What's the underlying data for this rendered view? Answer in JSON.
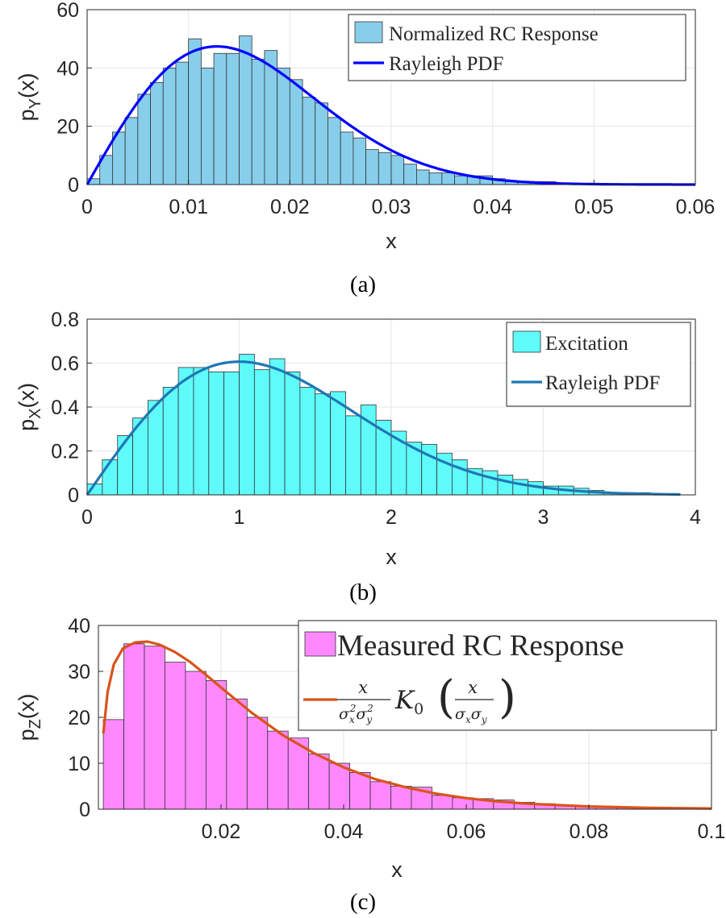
{
  "chart_data": [
    {
      "type": "bar",
      "panel": "a",
      "caption": "(a)",
      "xlabel": "x",
      "ylabel": "p",
      "ylabel_sub": "Y",
      "ylabel_tail": "(x)",
      "xlim": [
        0,
        0.06
      ],
      "ylim": [
        0,
        60
      ],
      "xticks": [
        0,
        0.01,
        0.02,
        0.03,
        0.04,
        0.05,
        0.06
      ],
      "xtick_labels": [
        "0",
        "0.01",
        "0.02",
        "0.03",
        "0.04",
        "0.05",
        "0.06"
      ],
      "yticks": [
        0,
        20,
        40,
        60
      ],
      "ytick_labels": [
        "0",
        "20",
        "40",
        "60"
      ],
      "grid": true,
      "legend_position": "top-right",
      "hist_color": "#87ceeb",
      "line_color": "#0000ff",
      "bin_edges_start": 0,
      "bin_width": 0.00125,
      "bin_values": [
        2,
        10,
        18,
        23,
        31,
        35,
        40,
        42,
        50,
        40,
        45,
        45,
        51,
        43,
        46,
        40,
        36,
        30,
        28,
        23,
        18,
        16,
        12,
        11,
        10,
        7,
        5,
        4,
        4,
        3,
        3,
        3,
        2,
        1,
        1,
        1,
        1,
        0.5
      ],
      "curve": {
        "name": "Rayleigh PDF",
        "kind": "rayleigh",
        "sigma": 0.0128,
        "x_range": [
          0,
          0.06
        ]
      },
      "legend": [
        {
          "label": "Normalized RC Response",
          "type": "patch"
        },
        {
          "label": "Rayleigh PDF",
          "type": "line"
        }
      ]
    },
    {
      "type": "bar",
      "panel": "b",
      "caption": "(b)",
      "xlabel": "x",
      "ylabel": "p",
      "ylabel_sub": "X",
      "ylabel_tail": "(x)",
      "xlim": [
        0,
        4
      ],
      "ylim": [
        0,
        0.8
      ],
      "xticks": [
        0,
        1,
        2,
        3,
        4
      ],
      "xtick_labels": [
        "0",
        "1",
        "2",
        "3",
        "4"
      ],
      "yticks": [
        0,
        0.2,
        0.4,
        0.6,
        0.8
      ],
      "ytick_labels": [
        "0",
        "0.2",
        "0.4",
        "0.6",
        "0.8"
      ],
      "grid": true,
      "legend_position": "top-right",
      "hist_color": "#5ffbfb",
      "line_color": "#1f77b4",
      "bin_edges_start": 0,
      "bin_width": 0.1,
      "bin_values": [
        0.05,
        0.16,
        0.27,
        0.35,
        0.43,
        0.49,
        0.58,
        0.58,
        0.56,
        0.56,
        0.64,
        0.57,
        0.62,
        0.56,
        0.49,
        0.46,
        0.47,
        0.36,
        0.41,
        0.34,
        0.29,
        0.24,
        0.23,
        0.19,
        0.16,
        0.12,
        0.11,
        0.09,
        0.07,
        0.06,
        0.04,
        0.04,
        0.03,
        0.02,
        0.01,
        0.01,
        0.01,
        0.005,
        0.005
      ],
      "curve": {
        "name": "Rayleigh PDF",
        "kind": "rayleigh",
        "sigma": 1.0,
        "x_range": [
          0,
          3.9
        ]
      },
      "legend": [
        {
          "label": "Excitation",
          "type": "patch"
        },
        {
          "label": "Rayleigh PDF",
          "type": "line"
        }
      ]
    },
    {
      "type": "bar",
      "panel": "c",
      "caption": "(c)",
      "xlabel": "x",
      "ylabel": "p",
      "ylabel_sub": "Z",
      "ylabel_tail": "(x)",
      "xlim": [
        0,
        0.1
      ],
      "ylim": [
        0,
        40
      ],
      "xticks": [
        0.02,
        0.04,
        0.06,
        0.08,
        0.1
      ],
      "xtick_labels": [
        "0.02",
        "0.04",
        "0.06",
        "0.08",
        "0.1"
      ],
      "yticks": [
        0,
        10,
        20,
        30,
        40
      ],
      "ytick_labels": [
        "0",
        "10",
        "20",
        "30",
        "40"
      ],
      "grid": true,
      "legend_position": "top-right",
      "hist_color": "#ff88ff",
      "line_color": "#d95319",
      "bin_edges_start": 0.0008,
      "bin_width": 0.00335,
      "bin_values": [
        19.5,
        36,
        35.5,
        32,
        30,
        28,
        24,
        20,
        17,
        15.5,
        12,
        10,
        8,
        6,
        5,
        4.8,
        3,
        2.5,
        2.3,
        2,
        1.5,
        1.2,
        0.8,
        0.6,
        0.4,
        0.3,
        0.2,
        0.1
      ],
      "curve": {
        "name": "x/(σx²σy²) K0(x/(σxσy))",
        "kind": "bessel-k0",
        "sigma_product": 0.00875,
        "x_range": [
          0.0008,
          0.1
        ],
        "points": [
          [
            0.0008,
            16.5
          ],
          [
            0.0015,
            25.5
          ],
          [
            0.0025,
            31.5
          ],
          [
            0.004,
            35
          ],
          [
            0.006,
            36.3
          ],
          [
            0.008,
            36.5
          ],
          [
            0.01,
            35.8
          ],
          [
            0.0125,
            34.2
          ],
          [
            0.015,
            32
          ],
          [
            0.0175,
            29.3
          ],
          [
            0.02,
            26.5
          ],
          [
            0.025,
            21
          ],
          [
            0.03,
            16.2
          ],
          [
            0.035,
            12.3
          ],
          [
            0.04,
            9.1
          ],
          [
            0.045,
            6.6
          ],
          [
            0.05,
            4.8
          ],
          [
            0.055,
            3.4
          ],
          [
            0.06,
            2.4
          ],
          [
            0.065,
            1.7
          ],
          [
            0.07,
            1.2
          ],
          [
            0.08,
            0.6
          ],
          [
            0.09,
            0.3
          ],
          [
            0.1,
            0.15
          ]
        ]
      },
      "legend": [
        {
          "label": "Measured RC Response",
          "type": "patch"
        },
        {
          "label": "",
          "type": "line"
        }
      ]
    }
  ]
}
